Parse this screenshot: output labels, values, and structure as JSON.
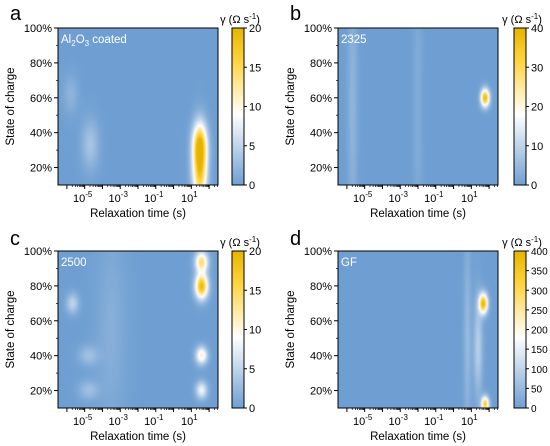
{
  "chart_data": [
    {
      "panel": "a",
      "type": "heatmap",
      "sample_label": "Al2O3 coated",
      "sample_label_parts": [
        "Al",
        "2",
        "O",
        "3",
        " coated"
      ],
      "xlabel": "Relaxation time (s)",
      "ylabel": "State of charge",
      "x_scale": "log",
      "x_ticks": [
        "10-5",
        "10-3",
        "10-1",
        "101"
      ],
      "x_tick_exponents": [
        -5,
        -3,
        -1,
        1
      ],
      "xlim_log10": [
        -6.5,
        2.5
      ],
      "y_ticks": [
        "20%",
        "40%",
        "60%",
        "80%",
        "100%"
      ],
      "y_tick_values": [
        20,
        40,
        60,
        80,
        100
      ],
      "ylim": [
        10,
        100
      ],
      "colorbar_label": "γ (Ω s-1)",
      "colorbar_ticks": [
        0,
        5,
        10,
        15,
        20
      ],
      "colorbar_range": [
        0,
        20
      ],
      "peaks": [
        {
          "log10_tau": 1.5,
          "soc": 20,
          "gamma": 18.5,
          "sx": 0.28,
          "sy": 14
        },
        {
          "log10_tau": 1.5,
          "soc": 34,
          "gamma": 11,
          "sx": 0.28,
          "sy": 8
        },
        {
          "log10_tau": -4.7,
          "soc": 33,
          "gamma": 3.5,
          "sx": 0.35,
          "sy": 10
        },
        {
          "log10_tau": -5.8,
          "soc": 62,
          "gamma": 2,
          "sx": 0.3,
          "sy": 8
        }
      ]
    },
    {
      "panel": "b",
      "type": "heatmap",
      "sample_label": "2325",
      "xlabel": "Relaxation time (s)",
      "ylabel": "State of charge",
      "x_scale": "log",
      "x_ticks": [
        "10-5",
        "10-3",
        "10-1",
        "101"
      ],
      "x_tick_exponents": [
        -5,
        -3,
        -1,
        1
      ],
      "xlim_log10": [
        -6.5,
        2.5
      ],
      "y_ticks": [
        "20%",
        "40%",
        "60%",
        "80%",
        "100%"
      ],
      "y_tick_values": [
        20,
        40,
        60,
        80,
        100
      ],
      "ylim": [
        10,
        100
      ],
      "colorbar_label": "γ (Ω s-1)",
      "colorbar_ticks": [
        0,
        10,
        20,
        30,
        40
      ],
      "colorbar_range": [
        0,
        40
      ],
      "peaks": [
        {
          "log10_tau": 1.8,
          "soc": 60,
          "gamma": 38,
          "sx": 0.17,
          "sy": 3.5
        },
        {
          "log10_tau": -5.7,
          "soc": 55,
          "gamma": 4,
          "sx": 0.2,
          "sy": 60
        },
        {
          "log10_tau": -2.0,
          "soc": 55,
          "gamma": 2.5,
          "sx": 0.2,
          "sy": 60
        }
      ]
    },
    {
      "panel": "c",
      "type": "heatmap",
      "sample_label": "2500",
      "xlabel": "Relaxation time (s)",
      "ylabel": "State of charge",
      "x_scale": "log",
      "x_ticks": [
        "10-5",
        "10-3",
        "10-1",
        "101"
      ],
      "x_tick_exponents": [
        -5,
        -3,
        -1,
        1
      ],
      "xlim_log10": [
        -6.5,
        2.5
      ],
      "y_ticks": [
        "20%",
        "40%",
        "60%",
        "80%",
        "100%"
      ],
      "y_tick_values": [
        20,
        40,
        60,
        80,
        100
      ],
      "ylim": [
        10,
        100
      ],
      "colorbar_label": "γ (Ω s-1)",
      "colorbar_ticks": [
        0,
        5,
        10,
        15,
        20
      ],
      "colorbar_range": [
        0,
        20
      ],
      "peaks": [
        {
          "log10_tau": 1.6,
          "soc": 80,
          "gamma": 19,
          "sx": 0.25,
          "sy": 5
        },
        {
          "log10_tau": 1.6,
          "soc": 94,
          "gamma": 14,
          "sx": 0.25,
          "sy": 4
        },
        {
          "log10_tau": 1.6,
          "soc": 40,
          "gamma": 11,
          "sx": 0.23,
          "sy": 3.5
        },
        {
          "log10_tau": 1.6,
          "soc": 20,
          "gamma": 8,
          "sx": 0.23,
          "sy": 3.5
        },
        {
          "log10_tau": -5.7,
          "soc": 70,
          "gamma": 5,
          "sx": 0.25,
          "sy": 4
        },
        {
          "log10_tau": -4.8,
          "soc": 40,
          "gamma": 3,
          "sx": 0.4,
          "sy": 4
        },
        {
          "log10_tau": -4.8,
          "soc": 20,
          "gamma": 3,
          "sx": 0.4,
          "sy": 4
        },
        {
          "log10_tau": -3.5,
          "soc": 55,
          "gamma": 1.5,
          "sx": 0.6,
          "sy": 40
        }
      ]
    },
    {
      "panel": "d",
      "type": "heatmap",
      "sample_label": "GF",
      "xlabel": "Relaxation time (s)",
      "ylabel": "State of charge",
      "x_scale": "log",
      "x_ticks": [
        "10-5",
        "10-3",
        "10-1",
        "101"
      ],
      "x_tick_exponents": [
        -5,
        -3,
        -1,
        1
      ],
      "xlim_log10": [
        -6.5,
        2.5
      ],
      "y_ticks": [
        "20%",
        "40%",
        "60%",
        "80%",
        "100%"
      ],
      "y_tick_values": [
        20,
        40,
        60,
        80,
        100
      ],
      "ylim": [
        10,
        100
      ],
      "colorbar_label": "γ (Ω s-1)",
      "colorbar_ticks": [
        0,
        50,
        100,
        150,
        200,
        250,
        300,
        350,
        400
      ],
      "colorbar_range": [
        0,
        400
      ],
      "peaks": [
        {
          "log10_tau": 1.7,
          "soc": 70,
          "gamma": 380,
          "sx": 0.17,
          "sy": 4
        },
        {
          "log10_tau": 1.8,
          "soc": 12,
          "gamma": 330,
          "sx": 0.15,
          "sy": 3
        },
        {
          "log10_tau": 1.4,
          "soc": 45,
          "gamma": 90,
          "sx": 0.18,
          "sy": 20
        },
        {
          "log10_tau": 0.8,
          "soc": 50,
          "gamma": 50,
          "sx": 0.15,
          "sy": 40
        }
      ]
    }
  ],
  "colormap": [
    "#6f9fd2",
    "#ffffff",
    "#ffd23a",
    "#e6b400"
  ]
}
